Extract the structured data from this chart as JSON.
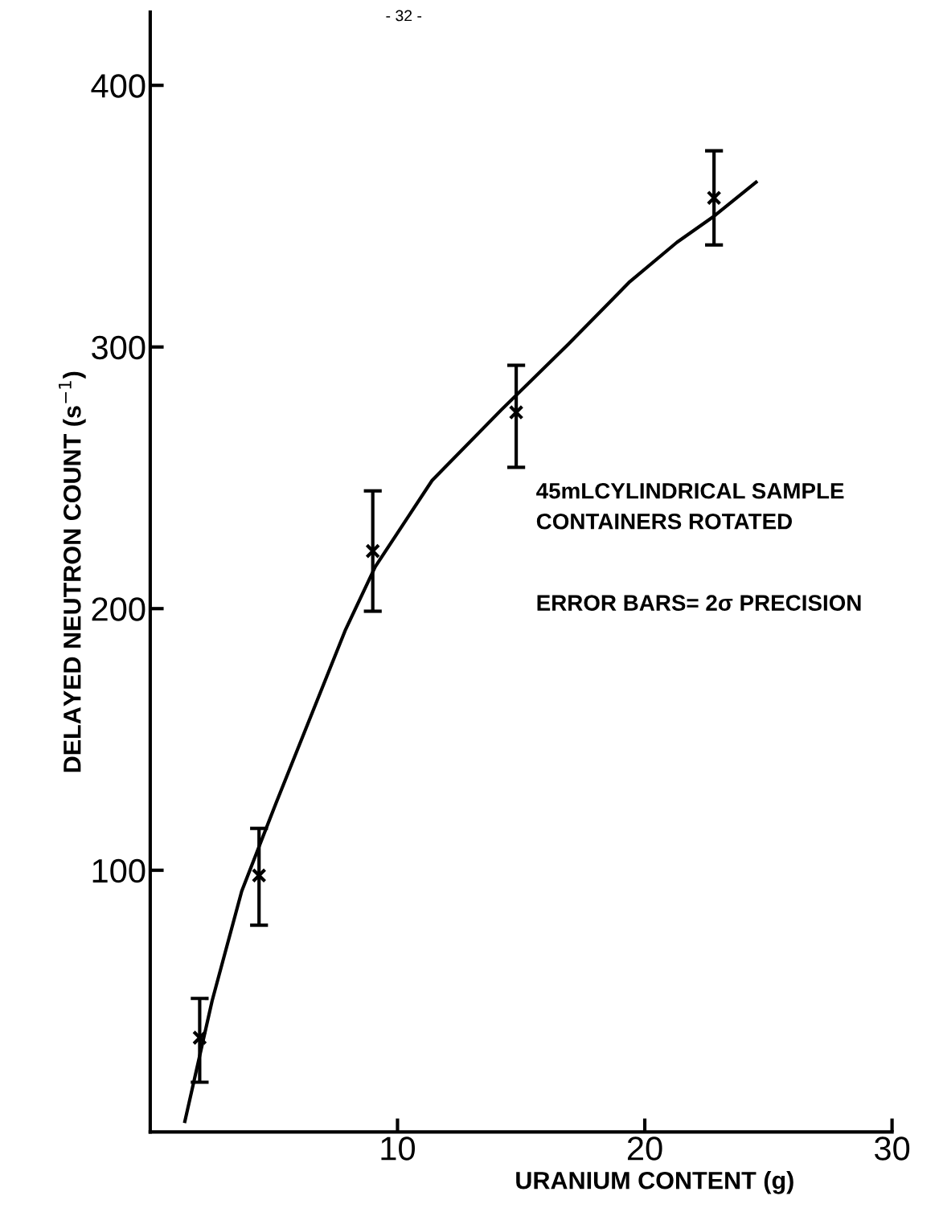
{
  "chart_data": {
    "type": "scatter",
    "xlabel": "URANIUM CONTENT (g)",
    "ylabel": "DELAYED NEUTRON COUNT (s$^{−1}$)",
    "annotations": [
      "- 32 -",
      "45mLCYLINDRICAL SAMPLE\nCONTAINERS ROTATED",
      "ERROR BARS= 2σ PRECISION"
    ],
    "xlim": [
      0,
      30
    ],
    "xticks": [
      10,
      20,
      30
    ],
    "ylim": [
      0,
      428
    ],
    "yticks": [
      100,
      200,
      300,
      400
    ],
    "grid": false,
    "legend": false,
    "series": [
      {
        "color": "#000000",
        "marker": "cross",
        "x": [
          2.0,
          4.4,
          9.0,
          14.8,
          22.8
        ],
        "values": [
          36,
          98,
          222,
          275,
          357
        ],
        "errors": [
          [
            19,
            51
          ],
          [
            79,
            116
          ],
          [
            199,
            245
          ],
          [
            254,
            293
          ],
          [
            339,
            375
          ]
        ]
      },
      {
        "type": "line",
        "color": "#000000",
        "marker": "none",
        "line_style": "solid",
        "x": [
          1.4,
          2.5,
          3.7,
          5.1,
          7.9,
          9.1,
          11.4,
          14.2,
          16.9,
          19.4,
          21.3,
          22.8,
          24.5
        ],
        "values": [
          4,
          50,
          92,
          126,
          192,
          216,
          249,
          276,
          301,
          325,
          340,
          350,
          363
        ]
      }
    ]
  }
}
